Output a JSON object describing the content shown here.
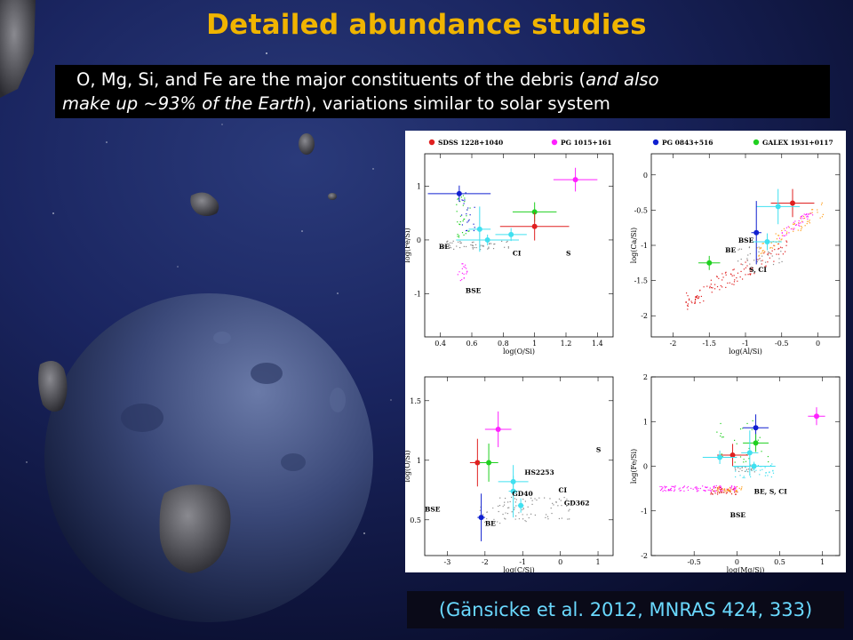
{
  "slide": {
    "title": "Detailed abundance studies",
    "text_line1_a": "O, Mg, Si, and Fe are the major constituents of the debris (",
    "text_line1_b": "and also",
    "text_line2_a": "make up ~93% of the Earth",
    "text_line2_b": "), variations similar to solar system",
    "citation": "(Gänsicke et al. 2012, MNRAS 424, 333)"
  },
  "colors": {
    "title": "#f0b400",
    "citation": "#6ad9ff",
    "SDSS 1228+1040": "#e02020",
    "PG 1015+161": "#ff20ff",
    "PG 0843+516": "#1020d0",
    "GALEX 1931+0117": "#20d020",
    "GD40/GD362/HS2253": "#40e0f0"
  },
  "icons": [
    "asteroid-icon",
    "moon-icon",
    "starfield-icon"
  ],
  "legend": {
    "left": [
      {
        "name": "SDSS 1228+1040",
        "color": "#e02020"
      },
      {
        "name": "PG 1015+161",
        "color": "#ff20ff"
      }
    ],
    "right": [
      {
        "name": "PG 0843+516",
        "color": "#1020d0"
      },
      {
        "name": "GALEX 1931+0117",
        "color": "#20d020"
      }
    ]
  },
  "chart_data": [
    {
      "type": "scatter",
      "xlabel": "log(O/Si)",
      "ylabel": "log(Fe/Si)",
      "xlim": [
        0.3,
        1.5
      ],
      "ylim": [
        -1.8,
        1.6
      ],
      "xticks": [
        0.4,
        0.6,
        0.8,
        1,
        1.2,
        1.4
      ],
      "yticks": [
        -1,
        0,
        1
      ],
      "points": [
        {
          "x": 0.52,
          "y": 0.86,
          "xerr": 0.2,
          "yerr": 0.15,
          "color": "#1020d0"
        },
        {
          "x": 1.0,
          "y": 0.52,
          "xerr": 0.14,
          "yerr": 0.18,
          "color": "#20d020"
        },
        {
          "x": 1.26,
          "y": 1.12,
          "xerr": 0.14,
          "yerr": 0.22,
          "color": "#ff20ff"
        },
        {
          "x": 1.0,
          "y": 0.25,
          "xerr": 0.22,
          "yerr": 0.26,
          "color": "#e02020"
        },
        {
          "x": 0.85,
          "y": 0.1,
          "xerr": 0.1,
          "yerr": 0.12,
          "color": "#40e0f0"
        },
        {
          "x": 0.65,
          "y": 0.2,
          "xerr": 0.07,
          "yerr": 0.42,
          "color": "#40e0f0"
        },
        {
          "x": 0.7,
          "y": 0.0,
          "xerr": 0.2,
          "yerr": 0.1,
          "color": "#40e0f0"
        }
      ],
      "annotations": [
        {
          "text": "BE",
          "x": 0.39,
          "y": -0.17
        },
        {
          "text": "CI",
          "x": 0.86,
          "y": -0.29
        },
        {
          "text": "S",
          "x": 1.2,
          "y": -0.29
        },
        {
          "text": "BSE",
          "x": 0.56,
          "y": -0.98
        }
      ]
    },
    {
      "type": "scatter",
      "xlabel": "log(Al/Si)",
      "ylabel": "log(Ca/Si)",
      "xlim": [
        -2.3,
        0.3
      ],
      "ylim": [
        -2.3,
        0.3
      ],
      "xticks": [
        -2,
        -1.5,
        -1,
        -0.5,
        0
      ],
      "yticks": [
        -2,
        -1.5,
        -1,
        -0.5,
        0
      ],
      "points": [
        {
          "x": -0.35,
          "y": -0.4,
          "xerr": 0.3,
          "yerr": 0.2,
          "color": "#e02020"
        },
        {
          "x": -0.55,
          "y": -0.45,
          "xerr": 0.3,
          "yerr": 0.25,
          "color": "#40e0f0"
        },
        {
          "x": -0.85,
          "y": -0.82,
          "xerr": 0.07,
          "yerr": 0.45,
          "color": "#1020d0"
        },
        {
          "x": -1.5,
          "y": -1.25,
          "xerr": 0.15,
          "yerr": 0.1,
          "color": "#20d020"
        },
        {
          "x": -0.7,
          "y": -0.95,
          "xerr": 0.2,
          "yerr": 0.12,
          "color": "#40e0f0"
        }
      ],
      "annotations": [
        {
          "text": "BSE",
          "x": -1.1,
          "y": -0.96
        },
        {
          "text": "BE",
          "x": -1.28,
          "y": -1.1
        },
        {
          "text": "S, CI",
          "x": -0.95,
          "y": -1.38
        }
      ]
    },
    {
      "type": "scatter",
      "xlabel": "log(C/Si)",
      "ylabel": "log(O/Si)",
      "xlim": [
        -3.6,
        1.4
      ],
      "ylim": [
        0.2,
        1.7
      ],
      "xticks": [
        -3,
        -2,
        -1,
        0,
        1
      ],
      "yticks": [
        0.5,
        1,
        1.5
      ],
      "points": [
        {
          "x": -1.65,
          "y": 1.26,
          "xerr": 0.35,
          "yerr": 0.15,
          "color": "#ff20ff"
        },
        {
          "x": -2.2,
          "y": 0.98,
          "xerr": 0.2,
          "yerr": 0.2,
          "color": "#e02020"
        },
        {
          "x": -1.9,
          "y": 0.98,
          "xerr": 0.25,
          "yerr": 0.16,
          "color": "#20d020"
        },
        {
          "x": -2.1,
          "y": 0.52,
          "xerr": 0.1,
          "yerr": 0.2,
          "color": "#1020d0"
        },
        {
          "x": -1.25,
          "y": 0.82,
          "xerr": 0.4,
          "yerr": 0.05,
          "color": "#40e0f0"
        },
        {
          "x": -1.25,
          "y": 0.74,
          "xerr": 0.12,
          "yerr": 0.22,
          "color": "#40e0f0"
        },
        {
          "x": -1.05,
          "y": 0.62,
          "xerr": 0.08,
          "yerr": 0.06,
          "color": "#40e0f0"
        }
      ],
      "annotations": [
        {
          "text": "S",
          "x": 0.95,
          "y": 1.07
        },
        {
          "text": "HS2253",
          "x": -0.95,
          "y": 0.88
        },
        {
          "text": "CI",
          "x": -0.05,
          "y": 0.73
        },
        {
          "text": "GD40",
          "x": -1.28,
          "y": 0.7
        },
        {
          "text": "GD362",
          "x": 0.1,
          "y": 0.62
        },
        {
          "text": "BSE",
          "x": -3.6,
          "y": 0.57
        },
        {
          "text": "BE",
          "x": -2.0,
          "y": 0.45
        }
      ]
    },
    {
      "type": "scatter",
      "xlabel": "log(Mg/Si)",
      "ylabel": "log(Fe/Si)",
      "xlim": [
        -1.0,
        1.2
      ],
      "ylim": [
        -2,
        2
      ],
      "xticks": [
        -0.5,
        0,
        0.5,
        1
      ],
      "yticks": [
        -2,
        -1,
        0,
        1,
        2
      ],
      "points": [
        {
          "x": 0.22,
          "y": 0.86,
          "xerr": 0.15,
          "yerr": 0.3,
          "color": "#1020d0"
        },
        {
          "x": 0.93,
          "y": 1.12,
          "xerr": 0.1,
          "yerr": 0.2,
          "color": "#ff20ff"
        },
        {
          "x": 0.22,
          "y": 0.52,
          "xerr": 0.15,
          "yerr": 0.2,
          "color": "#20d020"
        },
        {
          "x": -0.05,
          "y": 0.25,
          "xerr": 0.18,
          "yerr": 0.25,
          "color": "#e02020"
        },
        {
          "x": 0.2,
          "y": 0.0,
          "xerr": 0.25,
          "yerr": 0.1,
          "color": "#40e0f0"
        },
        {
          "x": 0.15,
          "y": 0.3,
          "xerr": 0.1,
          "yerr": 0.5,
          "color": "#40e0f0"
        },
        {
          "x": -0.2,
          "y": 0.2,
          "xerr": 0.2,
          "yerr": 0.15,
          "color": "#40e0f0"
        }
      ],
      "annotations": [
        {
          "text": "BE, S, CI",
          "x": 0.2,
          "y": -0.62
        },
        {
          "text": "BSE",
          "x": -0.08,
          "y": -1.14
        }
      ]
    }
  ]
}
